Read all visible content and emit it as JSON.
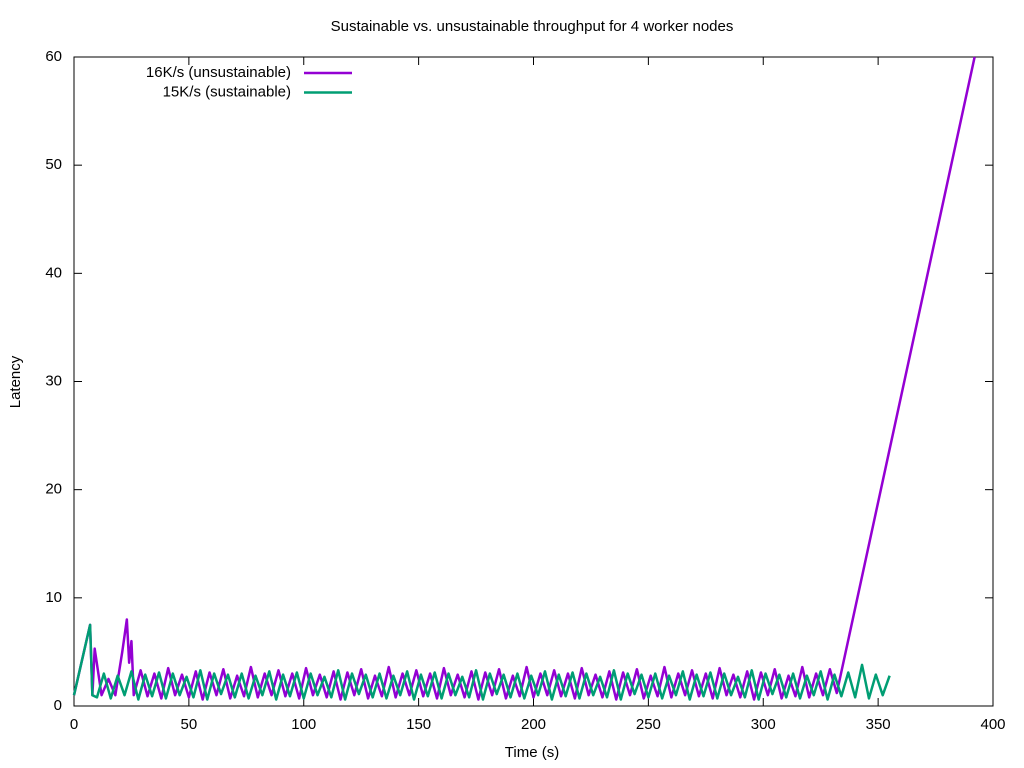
{
  "chart_data": {
    "type": "line",
    "title": "Sustainable vs. unsustainable throughput for 4 worker nodes",
    "xlabel": "Time (s)",
    "ylabel": "Latency",
    "xlim": [
      0,
      400
    ],
    "xticks": [
      0,
      50,
      100,
      150,
      200,
      250,
      300,
      350,
      400
    ],
    "ylim": [
      0,
      60
    ],
    "yticks": [
      0,
      10,
      20,
      30,
      40,
      50,
      60
    ],
    "legend": "top-left",
    "series": [
      {
        "name": "16K/s (unsustainable)",
        "color": "#9400d3",
        "x": [
          0,
          7,
          8,
          9,
          12,
          15,
          18,
          21,
          23,
          24,
          25,
          26,
          29,
          32,
          35,
          38,
          41,
          44,
          47,
          50,
          53,
          56,
          59,
          62,
          65,
          68,
          71,
          74,
          77,
          80,
          83,
          86,
          89,
          92,
          95,
          98,
          101,
          104,
          107,
          110,
          113,
          116,
          119,
          122,
          125,
          128,
          131,
          134,
          137,
          140,
          143,
          146,
          149,
          152,
          155,
          158,
          161,
          164,
          167,
          170,
          173,
          176,
          179,
          182,
          185,
          188,
          191,
          194,
          197,
          200,
          203,
          206,
          209,
          212,
          215,
          218,
          221,
          224,
          227,
          230,
          233,
          236,
          239,
          242,
          245,
          248,
          251,
          254,
          257,
          260,
          263,
          266,
          269,
          272,
          275,
          278,
          281,
          284,
          287,
          290,
          293,
          296,
          299,
          302,
          305,
          308,
          311,
          314,
          317,
          320,
          323,
          326,
          329,
          332,
          392
        ],
        "values": [
          1,
          7.5,
          1,
          5.3,
          1,
          2.5,
          1,
          5,
          8,
          4,
          6,
          1,
          3.3,
          0.9,
          3,
          0.7,
          3.5,
          1,
          2.9,
          0.8,
          3.2,
          0.6,
          3.1,
          1,
          3.4,
          0.7,
          2.8,
          0.9,
          3.6,
          0.8,
          3,
          1,
          3.3,
          0.9,
          3,
          0.7,
          3.5,
          1,
          2.9,
          0.8,
          3.2,
          0.6,
          3.1,
          1,
          3.4,
          0.7,
          2.8,
          0.9,
          3.6,
          0.8,
          3,
          1,
          3.3,
          0.9,
          3,
          0.7,
          3.5,
          1,
          2.9,
          0.8,
          3.2,
          0.6,
          3.1,
          1,
          3.4,
          0.7,
          2.8,
          0.9,
          3.6,
          0.8,
          3,
          1,
          3.3,
          0.9,
          3,
          0.7,
          3.5,
          1,
          2.9,
          0.8,
          3.2,
          0.6,
          3.1,
          1,
          3.4,
          0.7,
          2.8,
          0.9,
          3.6,
          0.8,
          3,
          1,
          3.3,
          0.9,
          3,
          0.7,
          3.5,
          1,
          2.9,
          0.8,
          3.2,
          0.6,
          3.1,
          1,
          3.4,
          0.7,
          2.8,
          0.9,
          3.6,
          0.8,
          3,
          1,
          3.4,
          1.2,
          60
        ]
      },
      {
        "name": "15K/s (sustainable)",
        "color": "#009e73",
        "x": [
          0,
          7,
          8,
          10,
          13,
          16,
          19,
          22,
          25,
          28,
          31,
          34,
          37,
          40,
          43,
          46,
          49,
          52,
          55,
          58,
          61,
          64,
          67,
          70,
          73,
          76,
          79,
          82,
          85,
          88,
          91,
          94,
          97,
          100,
          103,
          106,
          109,
          112,
          115,
          118,
          121,
          124,
          127,
          130,
          133,
          136,
          139,
          142,
          145,
          148,
          151,
          154,
          157,
          160,
          163,
          166,
          169,
          172,
          175,
          178,
          181,
          184,
          187,
          190,
          193,
          196,
          199,
          202,
          205,
          208,
          211,
          214,
          217,
          220,
          223,
          226,
          229,
          232,
          235,
          238,
          241,
          244,
          247,
          250,
          253,
          256,
          259,
          262,
          265,
          268,
          271,
          274,
          277,
          280,
          283,
          286,
          289,
          292,
          295,
          298,
          301,
          304,
          307,
          310,
          313,
          316,
          319,
          322,
          325,
          328,
          331,
          334,
          337,
          340,
          343,
          346,
          349,
          352,
          355
        ],
        "values": [
          1,
          7.5,
          1,
          0.8,
          3,
          0.7,
          2.8,
          1,
          3.2,
          0.6,
          2.9,
          0.9,
          3.1,
          0.7,
          3,
          1,
          2.7,
          0.8,
          3.3,
          0.6,
          3,
          1.1,
          2.9,
          0.8,
          3,
          0.7,
          2.8,
          1,
          3.2,
          0.6,
          2.9,
          0.9,
          3.1,
          0.7,
          3,
          1,
          2.7,
          0.8,
          3.3,
          0.6,
          3,
          1.1,
          2.9,
          0.8,
          3,
          0.7,
          2.8,
          1,
          3.2,
          0.6,
          2.9,
          0.9,
          3.1,
          0.7,
          3,
          1,
          2.7,
          0.8,
          3.3,
          0.6,
          3,
          1.1,
          2.9,
          0.8,
          3,
          0.7,
          2.8,
          1,
          3.2,
          0.6,
          2.9,
          0.9,
          3.1,
          0.7,
          3,
          1,
          2.7,
          0.8,
          3.3,
          0.6,
          3,
          1.1,
          2.9,
          0.8,
          3,
          0.7,
          2.8,
          1,
          3.2,
          0.6,
          2.9,
          0.9,
          3.1,
          0.7,
          3,
          1,
          2.7,
          0.8,
          3.3,
          0.6,
          3,
          1.1,
          2.9,
          0.8,
          3,
          0.7,
          2.8,
          1,
          3.2,
          0.6,
          2.9,
          0.9,
          3.1,
          0.8,
          3.8,
          0.7,
          2.9,
          1,
          2.8
        ]
      }
    ]
  }
}
